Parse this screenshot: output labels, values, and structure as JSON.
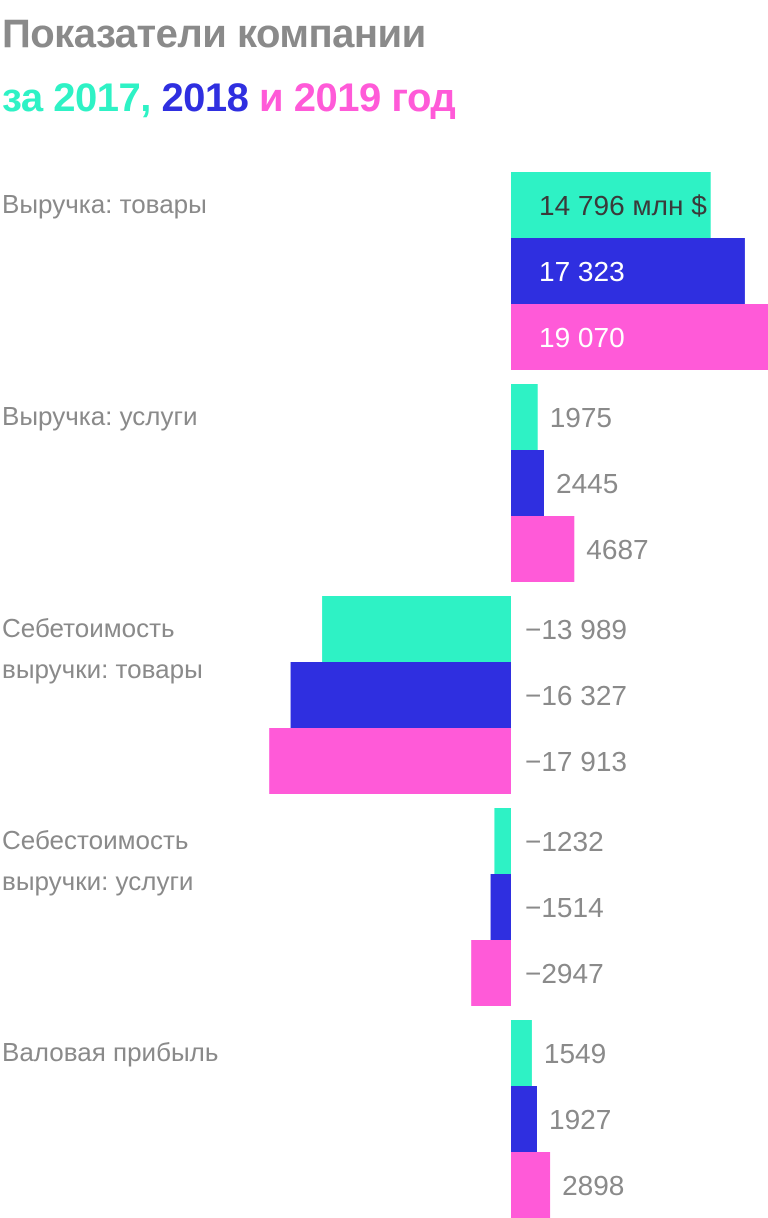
{
  "title": {
    "line1": "Показатели компании",
    "line2_parts": [
      {
        "text": "за 2017, ",
        "color": "#2ef2c5"
      },
      {
        "text": "2018 ",
        "color": "#2f2fe0"
      },
      {
        "text": "и 2019 год",
        "color": "#ff5ad8"
      }
    ]
  },
  "colors": {
    "2017": "#2ef2c5",
    "2018": "#2f2fe0",
    "2019": "#ff5ad8",
    "label_gray": "#8a8a8a",
    "label_white": "#ffffff",
    "label_dark": "#222222"
  },
  "chart_data": {
    "type": "bar",
    "orientation": "horizontal",
    "unit": "млн $",
    "series_names": [
      "2017",
      "2018",
      "2019"
    ],
    "categories": [
      {
        "label": "Выручка: товары",
        "lines": [
          "Выручка: товары"
        ],
        "values": [
          14796,
          17323,
          19070
        ],
        "value_labels": [
          "14 796 млн $",
          "17 323",
          "19 070"
        ]
      },
      {
        "label": "Выручка: услуги",
        "lines": [
          "Выручка: услуги"
        ],
        "values": [
          1975,
          2445,
          4687
        ],
        "value_labels": [
          "1975",
          "2445",
          "4687"
        ]
      },
      {
        "label": "Себетоимость выручки: товары",
        "lines": [
          "Себетоимость",
          "выручки: товары"
        ],
        "values": [
          -13989,
          -16327,
          -17913
        ],
        "value_labels": [
          "−13 989",
          "−16 327",
          "−17 913"
        ]
      },
      {
        "label": "Себестоимость выручки: услуги",
        "lines": [
          "Себестоимость",
          "выручки: услуги"
        ],
        "values": [
          -1232,
          -1514,
          -2947
        ],
        "value_labels": [
          "−1232",
          "−1514",
          "−2947"
        ]
      },
      {
        "label": "Валовая прибыль",
        "lines": [
          "Валовая прибыль"
        ],
        "values": [
          1549,
          1927,
          2898
        ],
        "value_labels": [
          "1549",
          "1927",
          "2898"
        ]
      }
    ]
  }
}
